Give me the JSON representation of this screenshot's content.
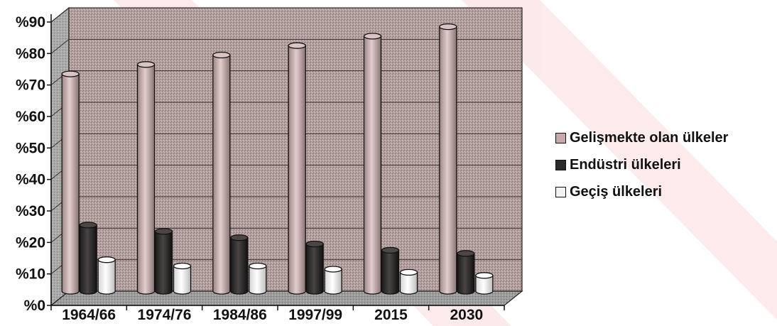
{
  "chart_data": {
    "type": "bar",
    "title": "",
    "xlabel": "",
    "ylabel": "",
    "ylim": [
      0,
      90
    ],
    "ytick_labels": [
      "%0",
      "%10",
      "%20",
      "%30",
      "%40",
      "%50",
      "%60",
      "%70",
      "%80",
      "%90"
    ],
    "yticks": [
      0,
      10,
      20,
      30,
      40,
      50,
      60,
      70,
      80,
      90
    ],
    "categories": [
      "1964/66",
      "1974/76",
      "1984/86",
      "1997/99",
      "2015",
      "2030"
    ],
    "series": [
      {
        "name": "Gelişmekte olan ülkeler",
        "values": [
          69,
          72,
          75,
          78,
          81,
          84
        ],
        "color": "#c8a9a9"
      },
      {
        "name": "Endüstri ülkeleri",
        "values": [
          21,
          19,
          17,
          15,
          13,
          12
        ],
        "color": "#2a2a2a"
      },
      {
        "name": "Geçiş ülkeleri",
        "values": [
          10,
          8,
          8,
          7,
          6,
          5
        ],
        "color": "#f2f2f2"
      }
    ],
    "grid": true,
    "legend_position": "right",
    "style": "3d-cylinder"
  }
}
